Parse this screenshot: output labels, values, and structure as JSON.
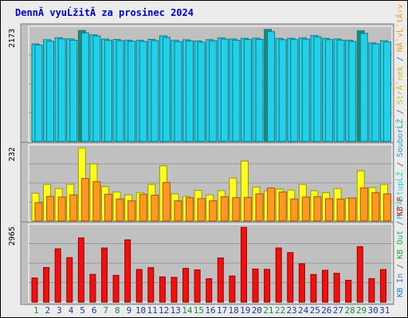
{
  "title": "DennĂ­ vyuĹžitĂ­ za prosinec 2024",
  "colors": {
    "background": "#ececec",
    "panel": "#c0c0c0",
    "title": "#0000cc",
    "grid": "#9a9a9a",
    "cyan": "#22d0e8",
    "cyan_dark": "#0f7c8a",
    "teal": "#1f8a74",
    "yellow": "#ffff22",
    "orange": "#ff9922",
    "red": "#ee1111",
    "weekend": "#1a8a4a",
    "weekday": "#1a3aaa"
  },
  "right_legend": {
    "top": [
      {
        "text": "PĹ™Ă­stupĹŻ",
        "color": "#22d0e8"
      },
      {
        "text": " / ",
        "color": "#555555"
      },
      {
        "text": "SouborĹŻ",
        "color": "#2a9ac0"
      },
      {
        "text": " / ",
        "color": "#555555"
      },
      {
        "text": "StrĂˇnek",
        "color": "#ccbb22"
      },
      {
        "text": " / ",
        "color": "#555555"
      },
      {
        "text": "NĂˇvĹˇtÄ›v",
        "color": "#ff9922"
      }
    ],
    "bottom": [
      {
        "text": "KB In",
        "color": "#2a7acc"
      },
      {
        "text": " / ",
        "color": "#555555"
      },
      {
        "text": "KB Out",
        "color": "#22aa44"
      },
      {
        "text": " / ",
        "color": "#555555"
      },
      {
        "text": "KB F",
        "color": "#ee1111"
      }
    ]
  },
  "chart_data": {
    "type": "bar",
    "title": "DennĂ­ vyuĹžitĂ­ za prosinec 2024",
    "days": [
      "1",
      "2",
      "3",
      "4",
      "5",
      "6",
      "7",
      "8",
      "9",
      "10",
      "11",
      "12",
      "13",
      "14",
      "15",
      "16",
      "17",
      "18",
      "19",
      "20",
      "21",
      "22",
      "23",
      "24",
      "25",
      "26",
      "27",
      "28",
      "29",
      "30",
      "31"
    ],
    "weekend_days": [
      "1",
      "7",
      "8",
      "14",
      "15",
      "21",
      "22",
      "28",
      "29"
    ],
    "panels": [
      {
        "name": "hits-files",
        "ymax_label": "2173",
        "ymax": 2173,
        "series": [
          {
            "key": "hits",
            "values": [
              1893,
              1975,
              2012,
              1990,
              2153,
              2070,
              1987,
              1978,
              1962,
              1962,
              1980,
              2048,
              1962,
              1972,
              1950,
              1975,
              2008,
              1989,
              2000,
              2003,
              2172,
              1999,
              2001,
              2008,
              2055,
              2000,
              1990,
              1962,
              2147,
              1913,
              1954
            ]
          },
          {
            "key": "files",
            "values": [
              1870,
              1945,
              1990,
              1964,
              2105,
              2045,
              1962,
              1955,
              1943,
              1940,
              1955,
              2018,
              1936,
              1948,
              1925,
              1952,
              1985,
              1965,
              1980,
              1982,
              2130,
              1975,
              1977,
              1985,
              2030,
              1975,
              1965,
              1940,
              2095,
              1890,
              1930
            ]
          }
        ]
      },
      {
        "name": "pages-visits",
        "ymax_label": "232",
        "ymax": 232,
        "series": [
          {
            "key": "pages",
            "values": [
              88,
              116,
              103,
              116,
              232,
              181,
              109,
              92,
              83,
              90,
              116,
              175,
              86,
              78,
              97,
              83,
              96,
              136,
              190,
              108,
              96,
              101,
              98,
              116,
              96,
              90,
              103,
              72,
              159,
              106,
              116
            ]
          },
          {
            "key": "visits",
            "values": [
              58,
              78,
              76,
              83,
              135,
              125,
              85,
              70,
              64,
              85,
              82,
              122,
              64,
              74,
              71,
              64,
              77,
              74,
              75,
              86,
              105,
              92,
              70,
              76,
              77,
              71,
              70,
              73,
              105,
              90,
              86
            ]
          }
        ]
      },
      {
        "name": "kbytes",
        "ymax_label": "2965",
        "ymax": 2965,
        "series": [
          {
            "key": "kb",
            "values": [
              956,
              1373,
              2115,
              1765,
              2547,
              1099,
              2146,
              1062,
              2469,
              1295,
              1367,
              1001,
              982,
              1338,
              1279,
              928,
              1749,
              1037,
              2965,
              1313,
              1299,
              2148,
              1963,
              1522,
              1096,
              1262,
              1142,
              866,
              2201,
              933,
              1291
            ]
          }
        ]
      }
    ]
  }
}
